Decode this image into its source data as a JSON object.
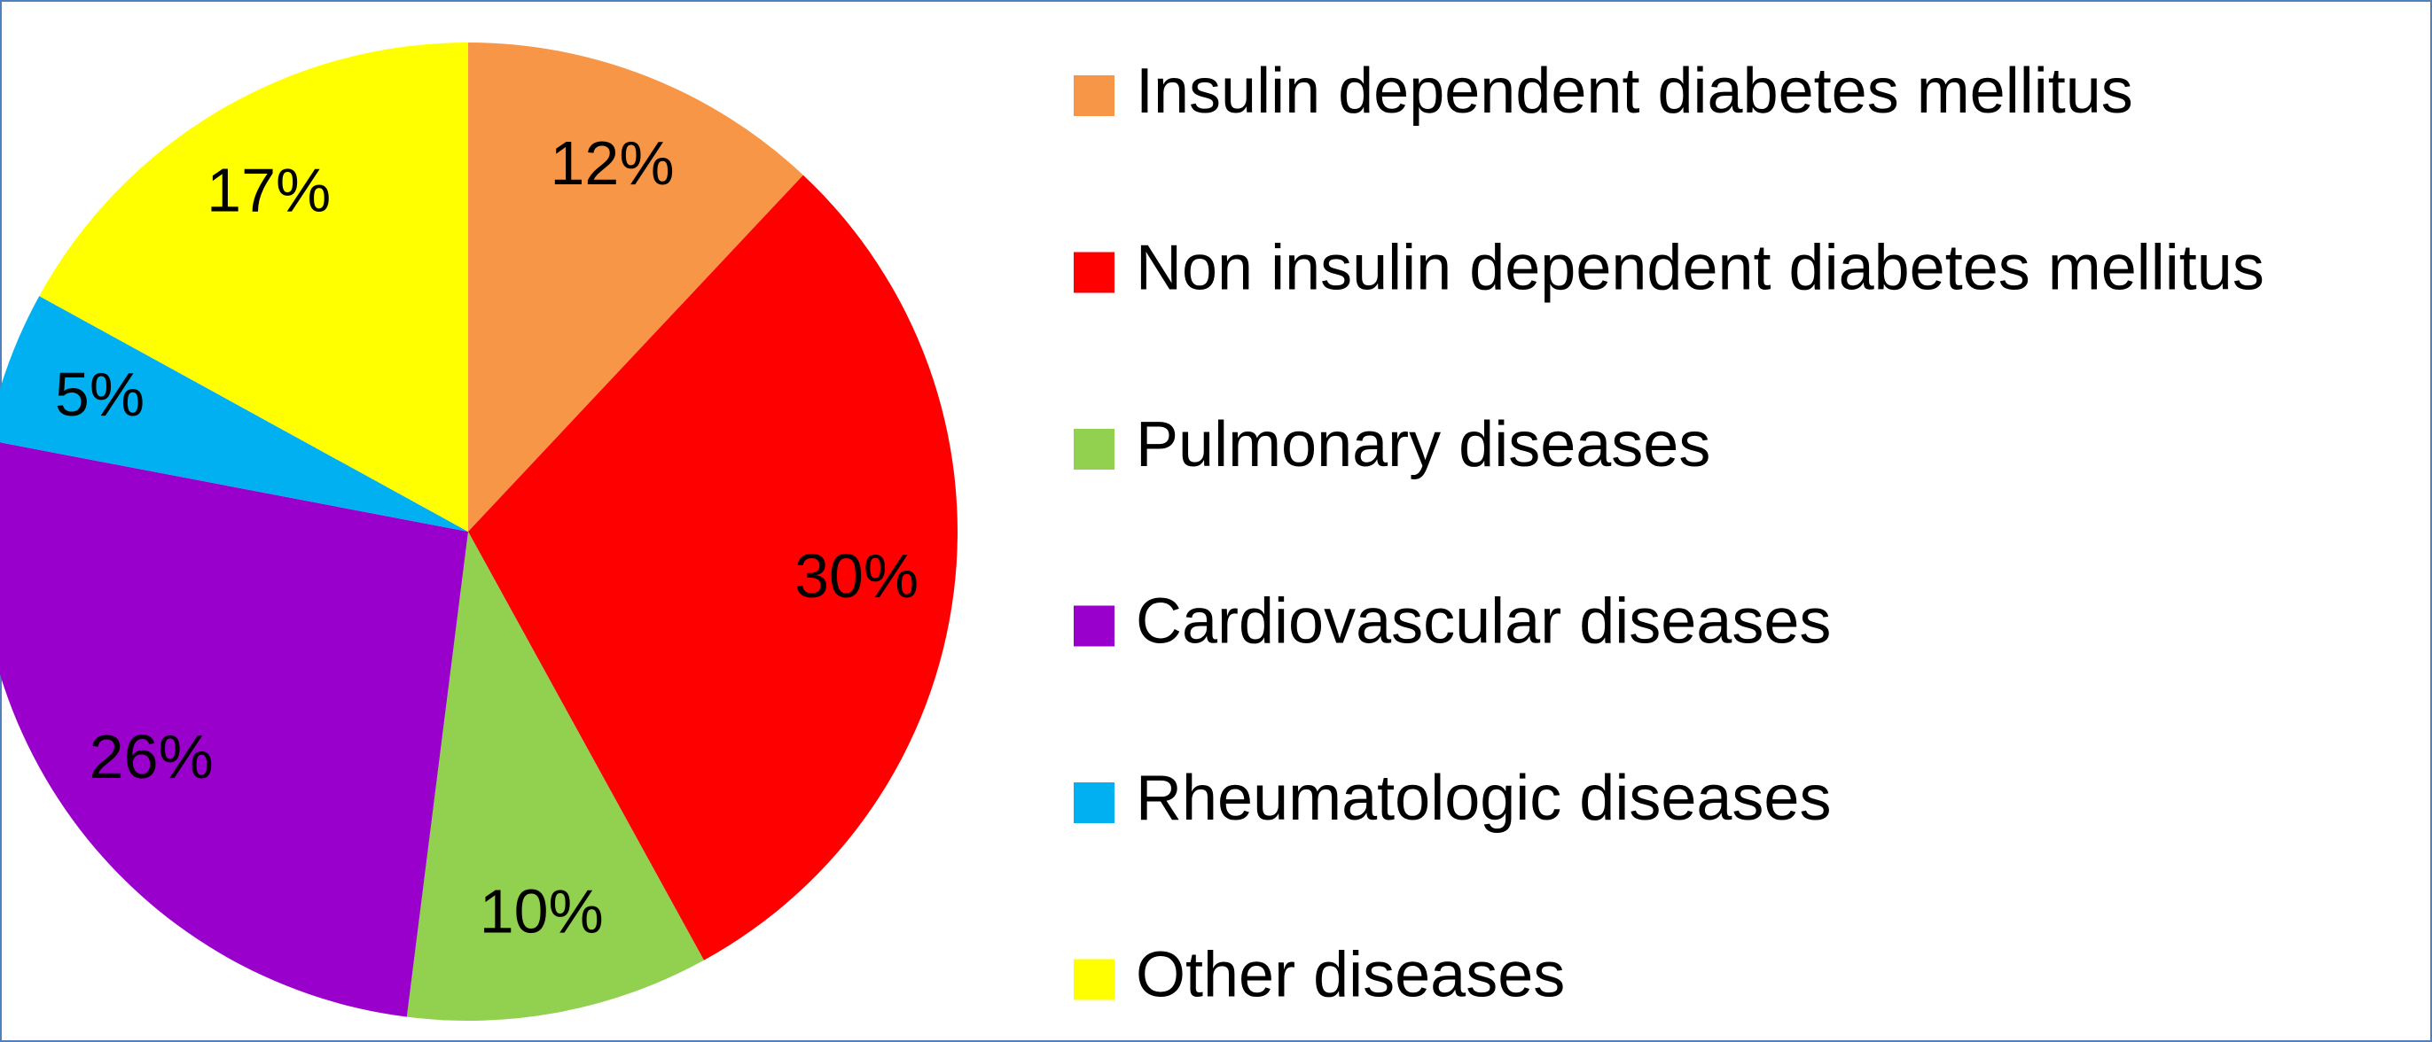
{
  "chart_data": {
    "type": "pie",
    "categories": [
      "Insulin dependent diabetes mellitus",
      "Non insulin dependent diabetes mellitus",
      "Pulmonary diseases",
      "Cardiovascular diseases",
      "Rheumatologic diseases",
      "Other diseases"
    ],
    "values": [
      12,
      30,
      10,
      26,
      5,
      17
    ],
    "value_labels": [
      "12%",
      "30%",
      "10%",
      "26%",
      "5%",
      "17%"
    ],
    "colors": [
      "#f79646",
      "#ff0000",
      "#92d050",
      "#9900cc",
      "#00b0f0",
      "#ffff00"
    ],
    "legend": "right"
  }
}
